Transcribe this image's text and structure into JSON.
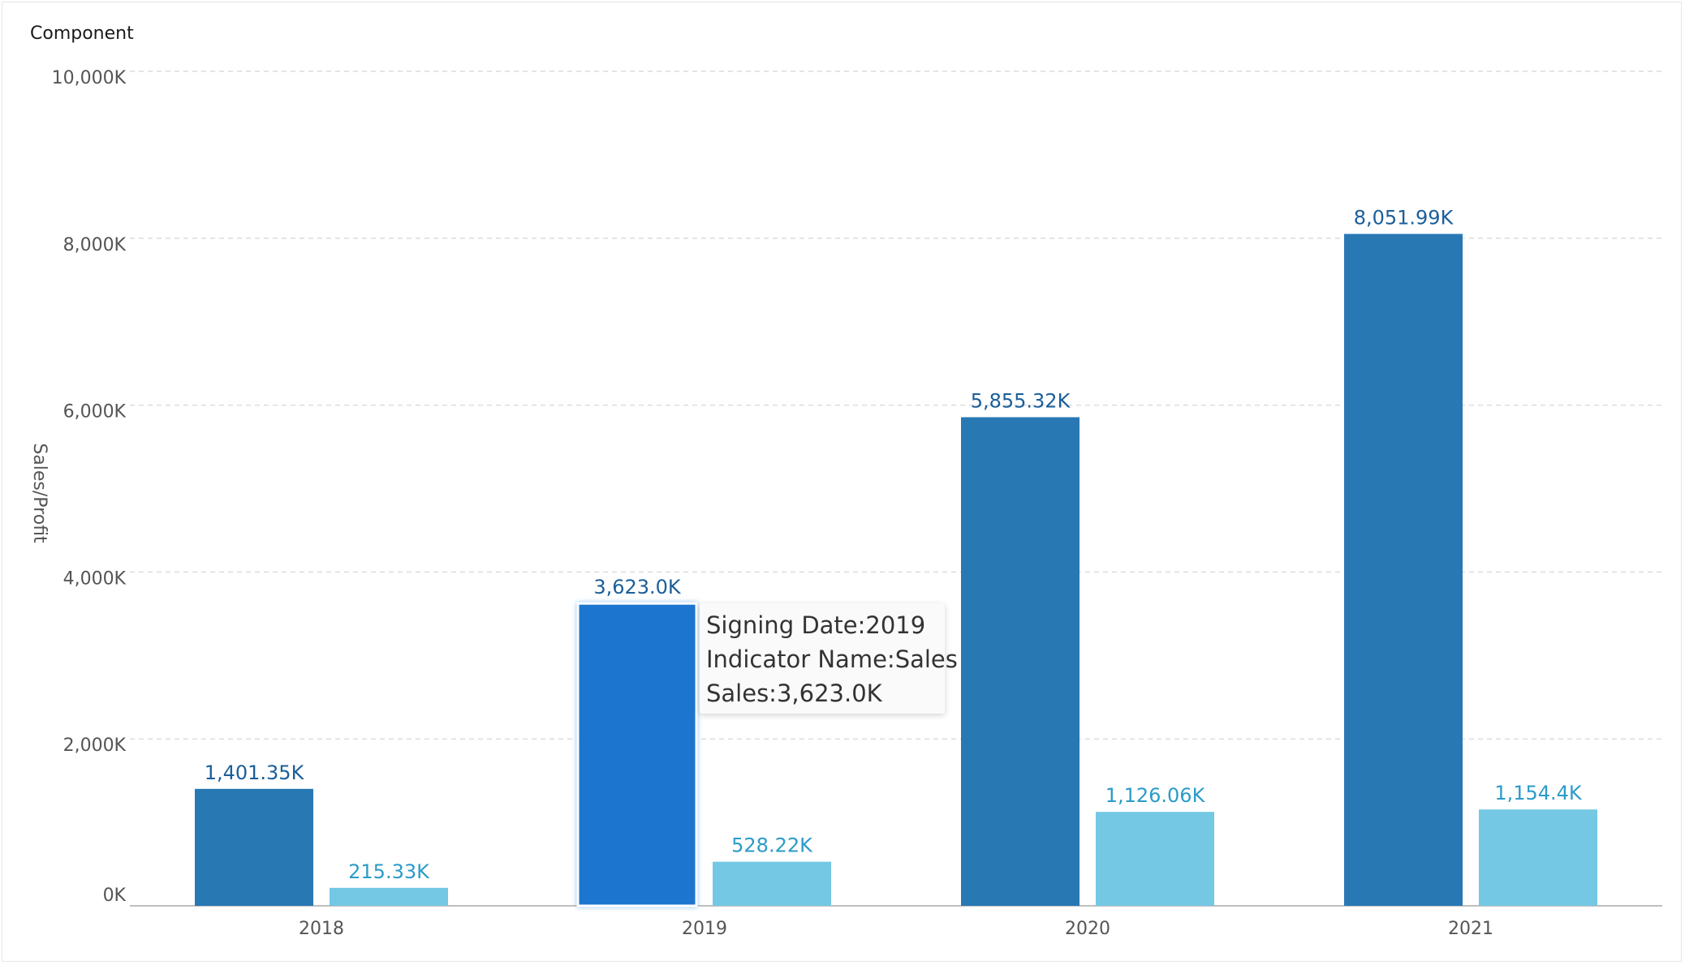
{
  "component": {
    "title": "Component"
  },
  "chart_data": {
    "type": "bar",
    "title": "Component",
    "xlabel": "",
    "ylabel": "Sales/Profit",
    "categories": [
      "2018",
      "2019",
      "2020",
      "2021"
    ],
    "series": [
      {
        "name": "Sales",
        "values": [
          1401.35,
          3623.0,
          5855.32,
          8051.99
        ],
        "labels": [
          "1,401.35K",
          "3,623.0K",
          "5,855.32K",
          "8,051.99K"
        ],
        "color": "#2878b4",
        "label_color": "#1b5e9a"
      },
      {
        "name": "Profit",
        "values": [
          215.33,
          528.22,
          1126.06,
          1154.4
        ],
        "labels": [
          "215.33K",
          "528.22K",
          "1,126.06K",
          "1,154.4K"
        ],
        "color": "#74c8e4",
        "label_color": "#2b9bc8"
      }
    ],
    "highlight": {
      "series": 0,
      "category": 1,
      "color": "#1b76d0"
    },
    "ylim": [
      0,
      10000
    ],
    "yticks": [
      0,
      2000,
      4000,
      6000,
      8000,
      10000
    ],
    "ytick_labels": [
      "0K",
      "2,000K",
      "4,000K",
      "6,000K",
      "8,000K",
      "10,000K"
    ],
    "grid": true
  },
  "tooltip": {
    "line1": "Signing Date:2019",
    "line2": "Indicator Name:Sales",
    "line3": "Sales:3,623.0K"
  }
}
